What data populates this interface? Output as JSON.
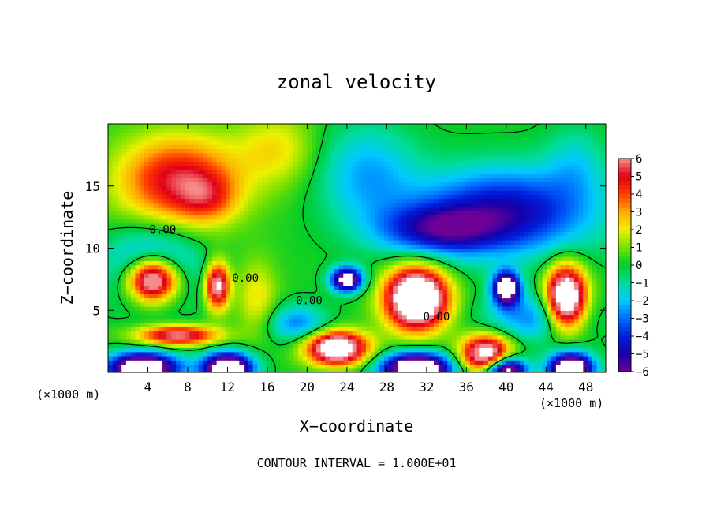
{
  "chart_data": {
    "type": "heatmap",
    "title": "zonal velocity",
    "xlabel": "X−coordinate",
    "ylabel": "Z−coordinate",
    "x_unit_left": "(×1000 m)",
    "x_unit_right": "(×1000 m)",
    "footer": "CONTOUR INTERVAL = 1.000E+01",
    "xlim": [
      0,
      50
    ],
    "ylim": [
      0,
      20
    ],
    "x_ticks": [
      4,
      8,
      12,
      16,
      20,
      24,
      28,
      32,
      36,
      40,
      44,
      48
    ],
    "y_ticks": [
      5,
      10,
      15
    ],
    "contour_label": "0.00",
    "colorbar": {
      "ticks": [
        6,
        5,
        4,
        3,
        2,
        1,
        0,
        -1,
        -2,
        -3,
        -4,
        -5,
        -6
      ],
      "tick_labels": [
        "6",
        "5",
        "4",
        "3",
        "2",
        "1",
        "0",
        "−1",
        "−2",
        "−3",
        "−4",
        "−5",
        "−6"
      ],
      "min": -6,
      "max": 6
    },
    "fields": {
      "background": 0.2,
      "blobs": [
        {
          "x": 7,
          "z": 15.5,
          "sx": 6,
          "sz": 3.5,
          "amp": 5
        },
        {
          "x": 17,
          "z": 18,
          "sx": 4,
          "sz": 3,
          "amp": 2
        },
        {
          "x": 10,
          "z": 14,
          "sx": 3,
          "sz": 2,
          "amp": 2
        },
        {
          "x": 26,
          "z": 16,
          "sx": 5,
          "sz": 4,
          "amp": -2.5
        },
        {
          "x": 40,
          "z": 13,
          "sx": 9,
          "sz": 3.5,
          "amp": -5
        },
        {
          "x": 33,
          "z": 11.5,
          "sx": 6,
          "sz": 2,
          "amp": -4
        },
        {
          "x": 47,
          "z": 17,
          "sx": 3,
          "sz": 3,
          "amp": -1.5
        },
        {
          "x": 4.5,
          "z": 7.5,
          "sx": 2.6,
          "sz": 1.8,
          "amp": 10
        },
        {
          "x": 4.5,
          "z": 8.5,
          "sx": 4.5,
          "sz": 3,
          "amp": -4
        },
        {
          "x": 11,
          "z": 7,
          "sx": 1.2,
          "sz": 1.8,
          "amp": 7
        },
        {
          "x": 24,
          "z": 7.5,
          "sx": 1.6,
          "sz": 1,
          "amp": -8
        },
        {
          "x": 31,
          "z": 6,
          "sx": 3,
          "sz": 2.4,
          "amp": 11
        },
        {
          "x": 40,
          "z": 6.8,
          "sx": 1.3,
          "sz": 1.3,
          "amp": -9
        },
        {
          "x": 46,
          "z": 6,
          "sx": 2,
          "sz": 2.5,
          "amp": 10
        },
        {
          "x": 43,
          "z": 4.5,
          "sx": 5,
          "sz": 2,
          "amp": -3
        },
        {
          "x": 23,
          "z": 2,
          "sx": 3,
          "sz": 1.3,
          "amp": 9
        },
        {
          "x": 38,
          "z": 1.5,
          "sx": 2.5,
          "sz": 1.5,
          "amp": 8
        },
        {
          "x": 7,
          "z": 3,
          "sx": 4,
          "sz": 0.8,
          "amp": 6
        },
        {
          "x": 3.5,
          "z": 0.4,
          "sx": 3.5,
          "sz": 1.2,
          "amp": -10
        },
        {
          "x": 12,
          "z": 0.4,
          "sx": 2.5,
          "sz": 1.2,
          "amp": -10
        },
        {
          "x": 31,
          "z": 0.4,
          "sx": 3.5,
          "sz": 1.2,
          "amp": -10
        },
        {
          "x": 40,
          "z": 0.3,
          "sx": 2,
          "sz": 1,
          "amp": -9
        },
        {
          "x": 46.5,
          "z": 0.4,
          "sx": 2.2,
          "sz": 1.2,
          "amp": -10
        },
        {
          "x": 19,
          "z": 4,
          "sx": 3,
          "sz": 1.5,
          "amp": -3
        },
        {
          "x": 15,
          "z": 6,
          "sx": 2,
          "sz": 3,
          "amp": 2
        }
      ]
    }
  }
}
